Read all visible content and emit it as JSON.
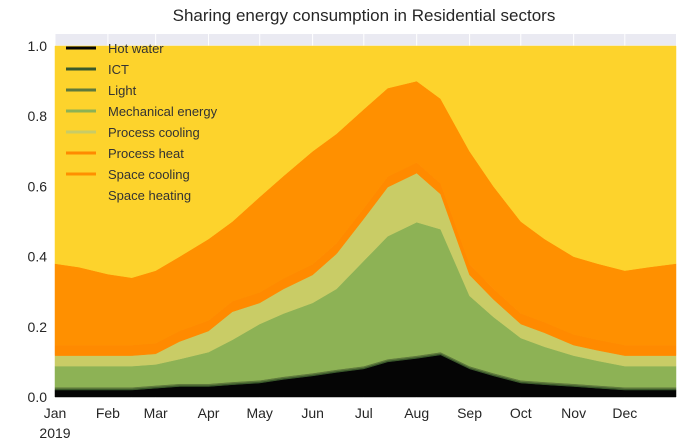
{
  "chart_data": {
    "type": "area",
    "stacked": true,
    "title": "Sharing energy consumption in Residential sectors",
    "xlabel": "",
    "ylabel": "",
    "ylim": [
      0,
      1.0
    ],
    "xlim": [
      "2019-01-01",
      "2019-12-31"
    ],
    "grid": true,
    "legend_placement": "top-left",
    "x_tick_labels": [
      "Jan",
      "Feb",
      "Mar",
      "Apr",
      "May",
      "Jun",
      "Jul",
      "Aug",
      "Sep",
      "Oct",
      "Nov",
      "Dec"
    ],
    "x_tick_dates": [
      "2019-01-01",
      "2019-02-01",
      "2019-03-01",
      "2019-04-01",
      "2019-05-01",
      "2019-06-01",
      "2019-07-01",
      "2019-08-01",
      "2019-09-01",
      "2019-10-01",
      "2019-11-01",
      "2019-12-01"
    ],
    "x_year_label": "2019",
    "y_ticks": [
      0.0,
      0.2,
      0.4,
      0.6,
      0.8,
      1.0
    ],
    "y_tick_labels": [
      "0.0",
      "0.2",
      "0.4",
      "0.6",
      "0.8",
      "1.0"
    ],
    "x": [
      "2019-01-01",
      "2019-01-15",
      "2019-02-01",
      "2019-02-15",
      "2019-03-01",
      "2019-03-15",
      "2019-04-01",
      "2019-04-15",
      "2019-05-01",
      "2019-05-15",
      "2019-06-01",
      "2019-06-15",
      "2019-07-01",
      "2019-07-15",
      "2019-08-01",
      "2019-08-15",
      "2019-09-01",
      "2019-09-15",
      "2019-10-01",
      "2019-10-15",
      "2019-11-01",
      "2019-11-15",
      "2019-12-01",
      "2019-12-15",
      "2019-12-31"
    ],
    "series": [
      {
        "name": "Hot water",
        "color": "#050505",
        "values": [
          0.02,
          0.02,
          0.02,
          0.02,
          0.025,
          0.03,
          0.03,
          0.035,
          0.04,
          0.05,
          0.06,
          0.07,
          0.08,
          0.1,
          0.11,
          0.12,
          0.08,
          0.06,
          0.04,
          0.035,
          0.03,
          0.025,
          0.02,
          0.02,
          0.02
        ]
      },
      {
        "name": "ICT",
        "color": "#3b5a2b",
        "values": [
          0.004,
          0.004,
          0.004,
          0.004,
          0.004,
          0.004,
          0.004,
          0.004,
          0.004,
          0.004,
          0.004,
          0.004,
          0.004,
          0.004,
          0.004,
          0.004,
          0.004,
          0.004,
          0.004,
          0.004,
          0.004,
          0.004,
          0.004,
          0.004,
          0.004
        ]
      },
      {
        "name": "Light",
        "color": "#5f7a3c",
        "values": [
          0.004,
          0.004,
          0.004,
          0.004,
          0.004,
          0.004,
          0.004,
          0.004,
          0.004,
          0.004,
          0.004,
          0.004,
          0.004,
          0.004,
          0.004,
          0.004,
          0.004,
          0.004,
          0.004,
          0.004,
          0.004,
          0.004,
          0.004,
          0.004,
          0.004
        ]
      },
      {
        "name": "Mechanical energy",
        "color": "#8db255",
        "values": [
          0.06,
          0.06,
          0.06,
          0.06,
          0.06,
          0.07,
          0.09,
          0.12,
          0.16,
          0.18,
          0.2,
          0.23,
          0.3,
          0.35,
          0.38,
          0.35,
          0.2,
          0.16,
          0.12,
          0.1,
          0.08,
          0.07,
          0.06,
          0.06,
          0.06
        ]
      },
      {
        "name": "Process cooling",
        "color": "#c9cc66",
        "values": [
          0.03,
          0.03,
          0.03,
          0.03,
          0.03,
          0.05,
          0.06,
          0.08,
          0.06,
          0.07,
          0.08,
          0.1,
          0.12,
          0.14,
          0.14,
          0.1,
          0.06,
          0.05,
          0.04,
          0.04,
          0.03,
          0.03,
          0.03,
          0.03,
          0.03
        ]
      },
      {
        "name": "Process heat",
        "color": "#ff8a00",
        "values": [
          0.03,
          0.03,
          0.03,
          0.03,
          0.03,
          0.03,
          0.03,
          0.03,
          0.03,
          0.03,
          0.03,
          0.03,
          0.03,
          0.03,
          0.03,
          0.03,
          0.03,
          0.03,
          0.03,
          0.03,
          0.03,
          0.03,
          0.03,
          0.03,
          0.03
        ]
      },
      {
        "name": "Space cooling",
        "color": "#ff9000",
        "values": [
          0.232,
          0.222,
          0.202,
          0.192,
          0.207,
          0.212,
          0.232,
          0.227,
          0.272,
          0.292,
          0.322,
          0.312,
          0.282,
          0.252,
          0.232,
          0.242,
          0.322,
          0.292,
          0.262,
          0.237,
          0.222,
          0.217,
          0.212,
          0.222,
          0.232
        ]
      },
      {
        "name": "Space heating",
        "color": "#fdd32c",
        "values": [
          0.62,
          0.63,
          0.65,
          0.66,
          0.64,
          0.6,
          0.55,
          0.5,
          0.43,
          0.37,
          0.3,
          0.25,
          0.18,
          0.12,
          0.1,
          0.15,
          0.3,
          0.4,
          0.5,
          0.55,
          0.6,
          0.62,
          0.64,
          0.63,
          0.62
        ]
      }
    ]
  }
}
